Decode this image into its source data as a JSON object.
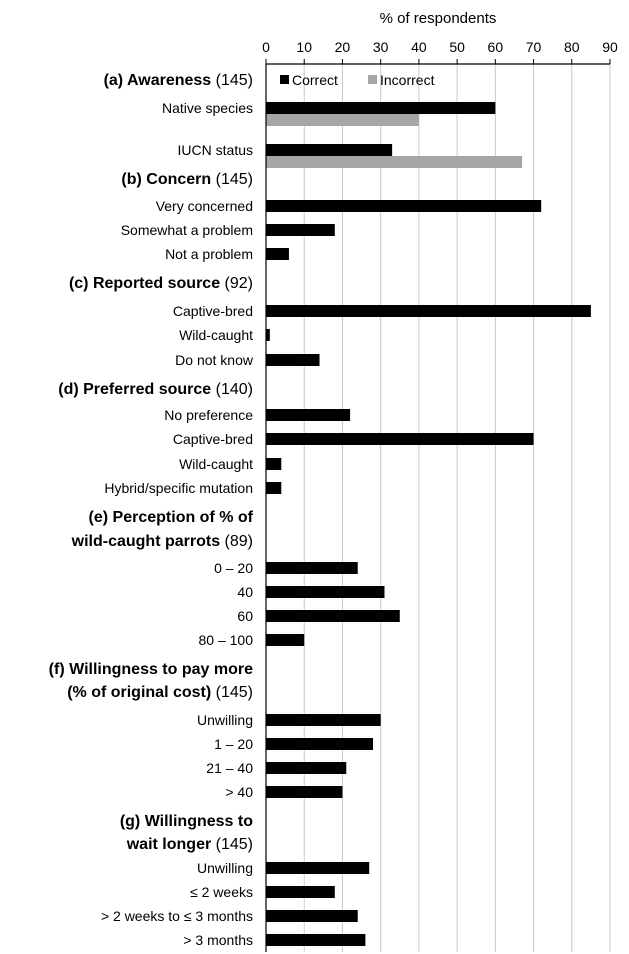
{
  "chart_data": {
    "type": "bar",
    "orientation": "horizontal",
    "xlabel": "% of respondents",
    "xlim": [
      0,
      90
    ],
    "xticks": [
      0,
      10,
      20,
      30,
      40,
      50,
      60,
      70,
      80,
      90
    ],
    "grid": true,
    "legend_position": "top",
    "legend": [
      {
        "name": "Correct",
        "color": "#000000"
      },
      {
        "name": "Incorrect",
        "color": "#a6a6a6"
      }
    ],
    "sections": [
      {
        "title": "(a) Awareness",
        "n": "(145)",
        "rows": [
          {
            "label": "Native species",
            "correct": 60,
            "incorrect": 40
          },
          {
            "label": "IUCN status",
            "correct": 33,
            "incorrect": 67
          }
        ]
      },
      {
        "title": "(b) Concern",
        "n": "(145)",
        "rows": [
          {
            "label": "Very concerned",
            "value": 72
          },
          {
            "label": "Somewhat a problem",
            "value": 18
          },
          {
            "label": "Not a problem",
            "value": 6
          }
        ]
      },
      {
        "title": "(c) Reported source",
        "n": "(92)",
        "rows": [
          {
            "label": "Captive-bred",
            "value": 85
          },
          {
            "label": "Wild-caught",
            "value": 1
          },
          {
            "label": "Do not know",
            "value": 14
          }
        ]
      },
      {
        "title": "(d) Preferred source",
        "n": "(140)",
        "rows": [
          {
            "label": "No preference",
            "value": 22
          },
          {
            "label": "Captive-bred",
            "value": 70
          },
          {
            "label": "Wild-caught",
            "value": 4
          },
          {
            "label": "Hybrid/specific mutation",
            "value": 4
          }
        ]
      },
      {
        "title_lines": [
          "(e) Perception of % of",
          "wild-caught parrots"
        ],
        "n": "(89)",
        "rows": [
          {
            "label": "0 – 20",
            "value": 24
          },
          {
            "label": "40",
            "value": 31
          },
          {
            "label": "60",
            "value": 35
          },
          {
            "label": "80 – 100",
            "value": 10
          }
        ]
      },
      {
        "title_lines": [
          "(f) Willingness to pay more",
          "(% of original cost)"
        ],
        "n": "(145)",
        "rows": [
          {
            "label": "Unwilling",
            "value": 30
          },
          {
            "label": "1 – 20",
            "value": 28
          },
          {
            "label": "21 – 40",
            "value": 21
          },
          {
            "label": "> 40",
            "value": 20
          }
        ]
      },
      {
        "title_lines": [
          "(g) Willingness to",
          "wait longer"
        ],
        "n": "(145)",
        "rows": [
          {
            "label": "Unwilling",
            "value": 27
          },
          {
            "label": "≤ 2 weeks",
            "value": 18
          },
          {
            "label": "> 2 weeks to ≤ 3 months",
            "value": 24
          },
          {
            "label": "> 3 months",
            "value": 26
          }
        ]
      }
    ]
  }
}
